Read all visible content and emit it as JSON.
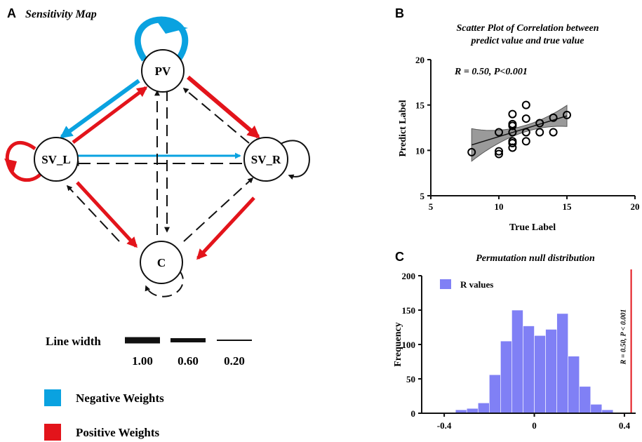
{
  "panel_a": {
    "letter": "A",
    "title": "Sensitivity Map",
    "nodes": {
      "pv": "PV",
      "svl": "SV_L",
      "svr": "SV_R",
      "c": "C"
    },
    "linewidth_legend": {
      "label": "Line width",
      "items": [
        {
          "label": "1.00",
          "width": 1.0
        },
        {
          "label": "0.60",
          "width": 0.6
        },
        {
          "label": "0.20",
          "width": 0.2
        }
      ]
    },
    "color_legend": [
      {
        "label": "Negative Weights",
        "color": "#0aa2e0"
      },
      {
        "label": "Positive Weights",
        "color": "#e3141b"
      }
    ]
  },
  "chart_data": [
    {
      "type": "scatter",
      "letter": "B",
      "title_lines": [
        "Scatter Plot of Correlation between",
        "predict value and true value"
      ],
      "xlabel": "True Label",
      "ylabel": "Predict Label",
      "xlim": [
        5,
        20
      ],
      "ylim": [
        5,
        20
      ],
      "xticks": [
        5,
        10,
        15,
        20
      ],
      "yticks": [
        5,
        10,
        15,
        20
      ],
      "annotation": "R = 0.50, P<0.001",
      "fit_line": {
        "x": [
          8,
          15
        ],
        "y": [
          10.6,
          13.8
        ]
      },
      "points": [
        {
          "x": 8,
          "y": 9.8
        },
        {
          "x": 10,
          "y": 9.6
        },
        {
          "x": 10,
          "y": 9.9
        },
        {
          "x": 10,
          "y": 12.0
        },
        {
          "x": 11,
          "y": 10.3
        },
        {
          "x": 11,
          "y": 10.8
        },
        {
          "x": 11,
          "y": 11.0
        },
        {
          "x": 11,
          "y": 12.0
        },
        {
          "x": 11,
          "y": 12.7
        },
        {
          "x": 11,
          "y": 12.9
        },
        {
          "x": 11,
          "y": 14.0
        },
        {
          "x": 12,
          "y": 11.0
        },
        {
          "x": 12,
          "y": 12.0
        },
        {
          "x": 12,
          "y": 13.5
        },
        {
          "x": 12,
          "y": 15.0
        },
        {
          "x": 13,
          "y": 12.0
        },
        {
          "x": 13,
          "y": 13.0
        },
        {
          "x": 14,
          "y": 12.0
        },
        {
          "x": 14,
          "y": 13.6
        },
        {
          "x": 15,
          "y": 13.9
        }
      ],
      "series_color": "#000000"
    },
    {
      "type": "bar",
      "letter": "C",
      "title": "Permutation null distribution",
      "xlabel": "",
      "ylabel": "Frequency",
      "xlim": [
        -0.5,
        0.45
      ],
      "ylim": [
        0,
        200
      ],
      "xticks": [
        -0.4,
        0,
        0.4
      ],
      "xtick_labels": [
        "-0.4",
        "0",
        "0.4"
      ],
      "yticks": [
        0,
        50,
        100,
        150,
        200
      ],
      "legend": "R values",
      "bin_width": 0.05,
      "bin_starts": [
        -0.4,
        -0.35,
        -0.3,
        -0.25,
        -0.2,
        -0.15,
        -0.1,
        -0.05,
        0,
        0.05,
        0.1,
        0.15,
        0.2,
        0.25,
        0.3,
        0.35
      ],
      "values": [
        1,
        5,
        7,
        15,
        56,
        105,
        150,
        127,
        113,
        122,
        145,
        83,
        39,
        13,
        5,
        1
      ],
      "bar_color": "#8080f5",
      "vline": {
        "x": 0.43,
        "label": "R = 0.50, P < 0.001",
        "color": "#e3141b"
      }
    }
  ]
}
